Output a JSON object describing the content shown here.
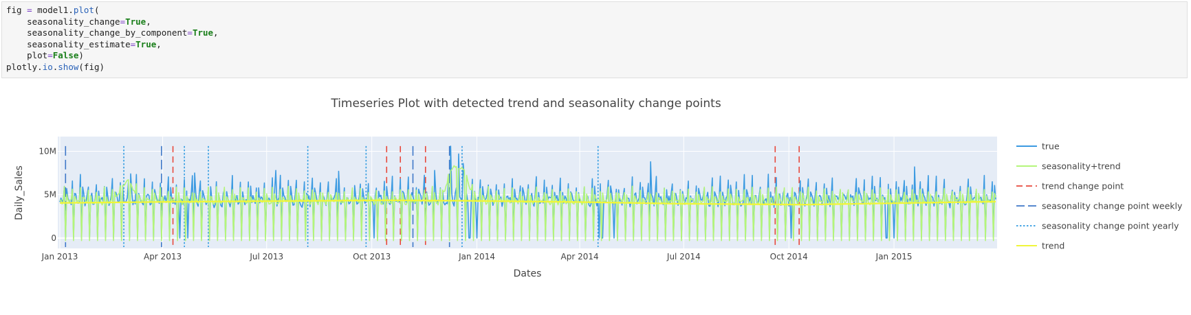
{
  "code_cell": {
    "lines": [
      [
        {
          "t": "fig "
        },
        {
          "t": "=",
          "c": "op"
        },
        {
          "t": " model1."
        },
        {
          "t": "plot",
          "c": "call"
        },
        {
          "t": "("
        }
      ],
      [
        {
          "t": "    seasonality_change"
        },
        {
          "t": "=",
          "c": "op"
        },
        {
          "t": "True",
          "c": "kw"
        },
        {
          "t": ","
        }
      ],
      [
        {
          "t": "    seasonality_change_by_component"
        },
        {
          "t": "=",
          "c": "op"
        },
        {
          "t": "True",
          "c": "kw"
        },
        {
          "t": ","
        }
      ],
      [
        {
          "t": "    seasonality_estimate"
        },
        {
          "t": "=",
          "c": "op"
        },
        {
          "t": "True",
          "c": "kw"
        },
        {
          "t": ","
        }
      ],
      [
        {
          "t": "    plot"
        },
        {
          "t": "=",
          "c": "op"
        },
        {
          "t": "False",
          "c": "kw"
        },
        {
          "t": ")"
        }
      ],
      [
        {
          "t": "plotly."
        },
        {
          "t": "io",
          "c": "call"
        },
        {
          "t": "."
        },
        {
          "t": "show",
          "c": "call"
        },
        {
          "t": "(fig)"
        }
      ]
    ]
  },
  "chart_data": {
    "type": "line",
    "title": "Timeseries Plot with detected trend and seasonality change points",
    "xlabel": "Dates",
    "ylabel": "Daily_Sales",
    "x_range": [
      "2013-01-01",
      "2015-03-31"
    ],
    "ylim": [
      -1200000,
      11700000
    ],
    "x_ticks": [
      {
        "date": "2013-01-01",
        "label": "Jan 2013"
      },
      {
        "date": "2013-04-01",
        "label": "Apr 2013"
      },
      {
        "date": "2013-07-01",
        "label": "Jul 2013"
      },
      {
        "date": "2013-10-01",
        "label": "Oct 2013"
      },
      {
        "date": "2014-01-01",
        "label": "Jan 2014"
      },
      {
        "date": "2014-04-01",
        "label": "Apr 2014"
      },
      {
        "date": "2014-07-01",
        "label": "Jul 2014"
      },
      {
        "date": "2014-10-01",
        "label": "Oct 2014"
      },
      {
        "date": "2015-01-01",
        "label": "Jan 2015"
      }
    ],
    "y_ticks": [
      {
        "value": 0,
        "label": "0"
      },
      {
        "value": 5000000,
        "label": "5M"
      },
      {
        "value": 10000000,
        "label": "10M"
      }
    ],
    "grid": true,
    "legend_position": "right",
    "colors": {
      "true": "#3b9ae1",
      "seasonality_trend": "#b4f57a",
      "trend_change": "#e8483b",
      "seasonality_weekly": "#3f78c8",
      "seasonality_yearly": "#2f9ae0",
      "trend": "#f0f53a",
      "plot_bg": "#e5ecf6",
      "grid": "#ffffff"
    },
    "legend": [
      {
        "name": "true",
        "style": "solid",
        "color_key": "true"
      },
      {
        "name": "seasonality+trend",
        "style": "solid",
        "color_key": "seasonality_trend"
      },
      {
        "name": "trend change point",
        "style": "dash",
        "color_key": "trend_change"
      },
      {
        "name": "seasonality change point weekly",
        "style": "longdash",
        "color_key": "seasonality_weekly"
      },
      {
        "name": "seasonality change point yearly",
        "style": "dot",
        "color_key": "seasonality_yearly"
      },
      {
        "name": "trend",
        "style": "solid",
        "color_key": "trend"
      }
    ],
    "series": [
      {
        "name": "true",
        "color_key": "true",
        "weekly_pattern": [
          0,
          5300000,
          4600000,
          4300000,
          4100000,
          4500000,
          6400000
        ],
        "spikes": [
          {
            "date": "2013-03-04",
            "value": 7400000
          },
          {
            "date": "2013-04-29",
            "value": 7500000
          },
          {
            "date": "2013-07-09",
            "value": 7800000
          },
          {
            "date": "2013-09-02",
            "value": 7700000
          },
          {
            "date": "2013-11-25",
            "value": 7800000
          },
          {
            "date": "2013-12-09",
            "value": 10600000
          },
          {
            "date": "2013-12-16",
            "value": 9700000
          },
          {
            "date": "2013-12-20",
            "value": 8600000
          },
          {
            "date": "2014-06-02",
            "value": 8800000
          },
          {
            "date": "2015-01-19",
            "value": 8200000
          }
        ],
        "extra_zeros": [
          "2013-04-16",
          "2013-04-23",
          "2013-10-03",
          "2013-12-25",
          "2013-12-26",
          "2014-01-01",
          "2014-04-18",
          "2014-04-21",
          "2014-05-01",
          "2014-10-03",
          "2014-12-25",
          "2014-12-26",
          "2015-01-01"
        ]
      },
      {
        "name": "seasonality+trend",
        "color_key": "seasonality_trend",
        "weekly_pattern": [
          -300000,
          4900000,
          4400000,
          4200000,
          4100000,
          4300000,
          5600000
        ],
        "yearly_peaks": [
          {
            "date": "2013-03-01",
            "value": 6900000
          },
          {
            "date": "2013-12-12",
            "value": 8800000
          },
          {
            "date": "2013-12-19",
            "value": 8400000
          }
        ]
      },
      {
        "name": "trend",
        "color_key": "trend",
        "points": [
          {
            "date": "2013-01-01",
            "value": 4050000
          },
          {
            "date": "2013-05-01",
            "value": 4200000
          },
          {
            "date": "2013-10-15",
            "value": 4350000
          },
          {
            "date": "2013-12-20",
            "value": 4300000
          },
          {
            "date": "2014-04-01",
            "value": 4150000
          },
          {
            "date": "2014-07-01",
            "value": 3950000
          },
          {
            "date": "2014-10-15",
            "value": 3850000
          },
          {
            "date": "2015-03-31",
            "value": 4200000
          }
        ]
      }
    ],
    "trend_change_points": [
      "2013-04-10",
      "2013-10-14",
      "2013-10-26",
      "2013-11-17",
      "2014-09-19",
      "2014-10-10"
    ],
    "seasonality_change_points_weekly": [
      "2013-01-06",
      "2013-03-31",
      "2013-11-06",
      "2013-12-08"
    ],
    "seasonality_change_points_yearly": [
      "2013-02-26",
      "2013-04-20",
      "2013-05-11",
      "2013-08-06",
      "2013-09-26",
      "2013-12-19",
      "2014-04-17"
    ]
  }
}
